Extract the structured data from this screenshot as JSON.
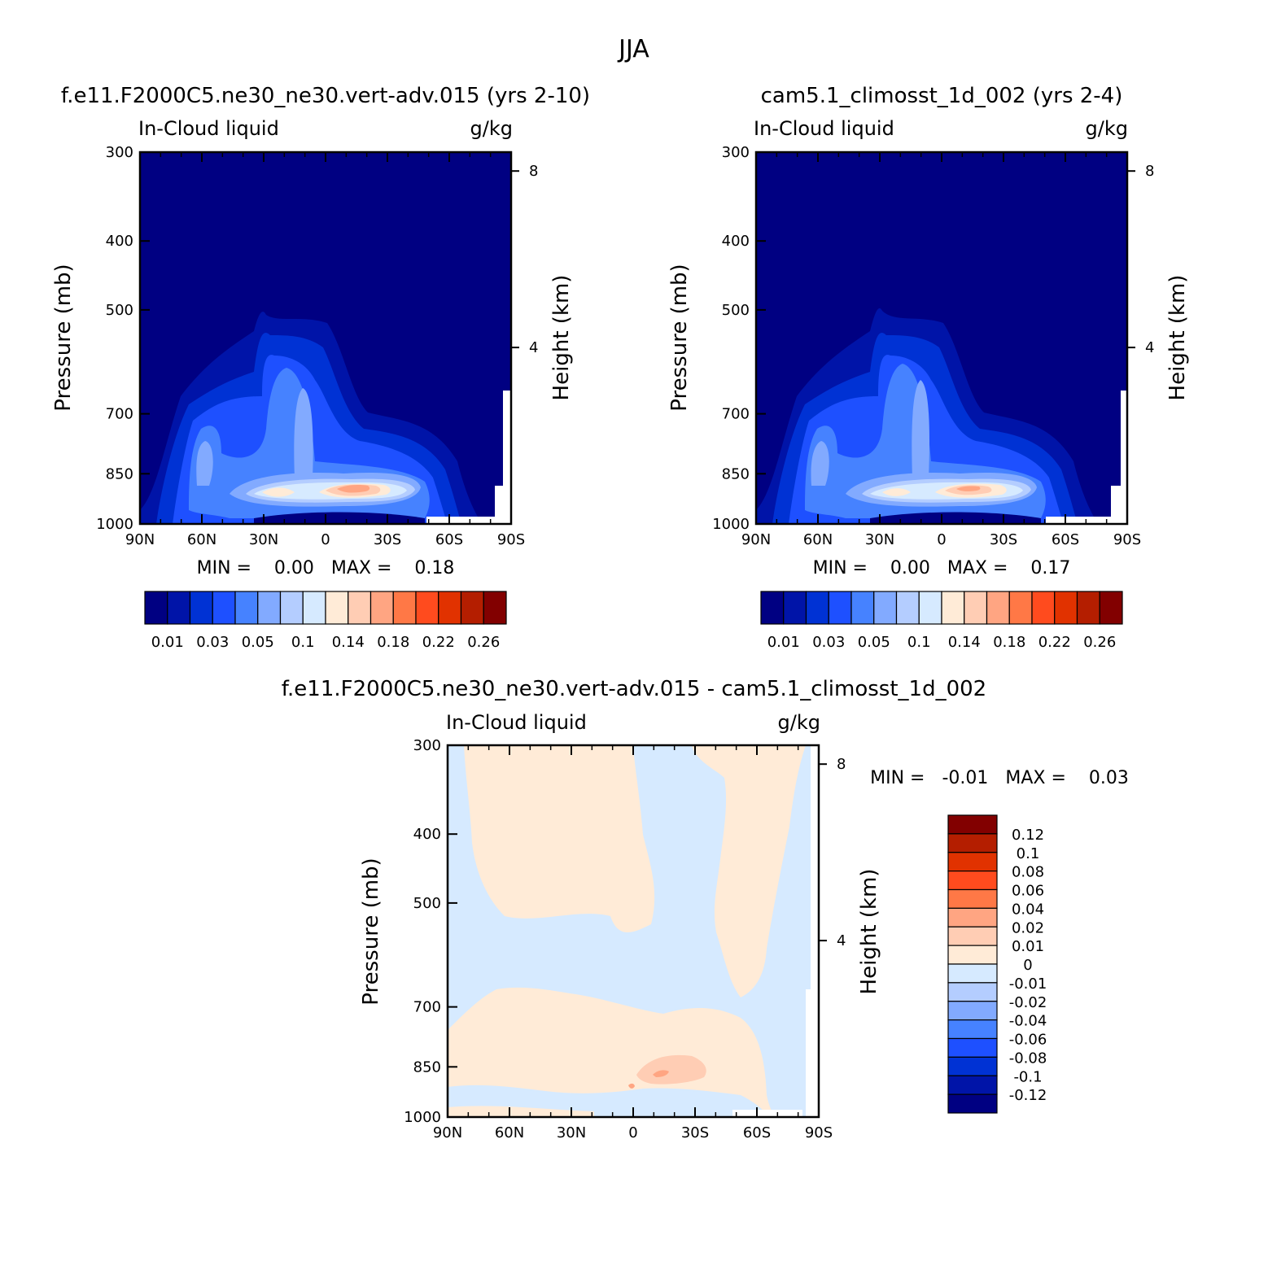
{
  "figure_title": "JJA",
  "panels": [
    {
      "id": "top-left",
      "title": "f.e11.F2000C5.ne30_ne30.vert-adv.015 (yrs 2-10)",
      "left_label": "In-Cloud liquid",
      "right_label": "g/kg",
      "minmax": "MIN =    0.00   MAX =    0.18"
    },
    {
      "id": "top-right",
      "title": "cam5.1_climosst_1d_002 (yrs 2-4)",
      "left_label": "In-Cloud liquid",
      "right_label": "g/kg",
      "minmax": "MIN =    0.00   MAX =    0.17"
    },
    {
      "id": "bottom",
      "title": "f.e11.F2000C5.ne30_ne30.vert-adv.015 - cam5.1_climosst_1d_002",
      "left_label": "In-Cloud liquid",
      "right_label": "g/kg",
      "minmax": "MIN =   -0.01   MAX =    0.03"
    }
  ],
  "axes": {
    "ylabel": "Pressure (mb)",
    "y2label": "Height (km)",
    "x_ticks": [
      "90N",
      "60N",
      "30N",
      "0",
      "30S",
      "60S",
      "90S"
    ],
    "y_ticks": [
      "300",
      "400",
      "500",
      "700",
      "850",
      "1000"
    ],
    "y2_ticks": [
      "8",
      "4"
    ]
  },
  "colorbar_model": {
    "colors": [
      "#000082",
      "#0014a8",
      "#0032d4",
      "#1e50ff",
      "#4682ff",
      "#82aaff",
      "#b4cdff",
      "#d6eaff",
      "#ffebd7",
      "#ffcdb4",
      "#ffa582",
      "#ff7846",
      "#ff4b1e",
      "#e13200",
      "#b41e00",
      "#820000"
    ],
    "labels": [
      "0.01",
      "0.03",
      "0.05",
      "0.1",
      "0.14",
      "0.18",
      "0.22",
      "0.26"
    ]
  },
  "colorbar_diff": {
    "colors": [
      "#820000",
      "#b41e00",
      "#e13200",
      "#ff4b1e",
      "#ff7846",
      "#ffa582",
      "#ffcdb4",
      "#ffebd7",
      "#d6eaff",
      "#b4cdff",
      "#82aaff",
      "#4682ff",
      "#1e50ff",
      "#0032d4",
      "#0014a8",
      "#000082"
    ],
    "labels": [
      "0.12",
      "0.1",
      "0.08",
      "0.06",
      "0.04",
      "0.02",
      "0.01",
      "0",
      "-0.01",
      "-0.02",
      "-0.04",
      "-0.06",
      "-0.08",
      "-0.1",
      "-0.12"
    ]
  },
  "chart_data": [
    {
      "type": "heatmap",
      "title": "f.e11.F2000C5.ne30_ne30.vert-adv.015 (yrs 2-10)",
      "variable": "In-Cloud liquid",
      "units": "g/kg",
      "xlabel": "",
      "ylabel": "Pressure (mb)",
      "y2label": "Height (km)",
      "xlim": [
        "90N",
        "90S"
      ],
      "ylim": [
        300,
        1000
      ],
      "min": 0.0,
      "max": 0.18,
      "levels": [
        0.01,
        0.02,
        0.03,
        0.04,
        0.05,
        0.07,
        0.1,
        0.12,
        0.14,
        0.16,
        0.18,
        0.2,
        0.22,
        0.24,
        0.26
      ]
    },
    {
      "type": "heatmap",
      "title": "cam5.1_climosst_1d_002 (yrs 2-4)",
      "variable": "In-Cloud liquid",
      "units": "g/kg",
      "xlabel": "",
      "ylabel": "Pressure (mb)",
      "y2label": "Height (km)",
      "xlim": [
        "90N",
        "90S"
      ],
      "ylim": [
        300,
        1000
      ],
      "min": 0.0,
      "max": 0.17,
      "levels": [
        0.01,
        0.02,
        0.03,
        0.04,
        0.05,
        0.07,
        0.1,
        0.12,
        0.14,
        0.16,
        0.18,
        0.2,
        0.22,
        0.24,
        0.26
      ]
    },
    {
      "type": "heatmap",
      "title": "f.e11.F2000C5.ne30_ne30.vert-adv.015 - cam5.1_climosst_1d_002",
      "variable": "In-Cloud liquid",
      "units": "g/kg",
      "xlabel": "",
      "ylabel": "Pressure (mb)",
      "y2label": "Height (km)",
      "xlim": [
        "90N",
        "90S"
      ],
      "ylim": [
        300,
        1000
      ],
      "min": -0.01,
      "max": 0.03,
      "levels": [
        -0.12,
        -0.1,
        -0.08,
        -0.06,
        -0.04,
        -0.02,
        -0.01,
        0,
        0.01,
        0.02,
        0.04,
        0.06,
        0.08,
        0.1,
        0.12
      ]
    }
  ]
}
